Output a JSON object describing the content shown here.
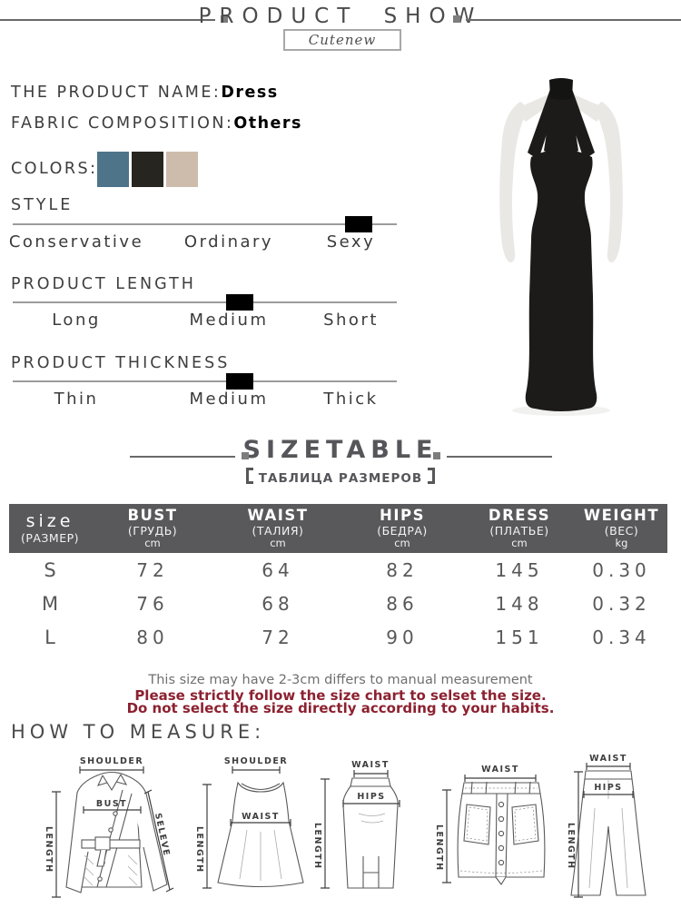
{
  "header": {
    "title": "PRODUCT SHOW",
    "brand": "Cutenew"
  },
  "product": {
    "name_label": "THE PRODUCT NAME:",
    "name_value": "Dress",
    "fabric_label": "FABRIC COMPOSITION:",
    "fabric_value": "Others",
    "colors_label": "COLORS:",
    "swatches": [
      "#4e748a",
      "#26251f",
      "#cdbcab"
    ]
  },
  "attributes": [
    {
      "title": "STYLE",
      "options": [
        "Conservative",
        "Ordinary",
        "Sexy"
      ],
      "selected": "Sexy",
      "marker_percent": 90
    },
    {
      "title": "PRODUCT LENGTH",
      "options": [
        "Long",
        "Medium",
        "Short"
      ],
      "selected": "Medium",
      "marker_percent": 59
    },
    {
      "title": "PRODUCT THICKNESS",
      "options": [
        "Thin",
        "Medium",
        "Thick"
      ],
      "selected": "Medium",
      "marker_percent": 59
    }
  ],
  "size_section": {
    "title": "SIZETABLE",
    "subtitle": "【 ТАБЛИЦА РАЗМЕРОВ 】",
    "subtitle_text": "ТАБЛИЦА РАЗМЕРОВ"
  },
  "size_table": {
    "columns": [
      {
        "en": "size",
        "ru": "(РАЗМЕР)",
        "unit": ""
      },
      {
        "en": "BUST",
        "ru": "(ГРУДЬ)",
        "unit": "cm"
      },
      {
        "en": "WAIST",
        "ru": "(ТАЛИЯ)",
        "unit": "cm"
      },
      {
        "en": "HIPS",
        "ru": "(БЕДРА)",
        "unit": "cm"
      },
      {
        "en": "DRESS",
        "ru": "(ПЛАТЬЕ)",
        "unit": "cm"
      },
      {
        "en": "WEIGHT",
        "ru": "(ВЕС)",
        "unit": "kg"
      }
    ],
    "rows": [
      {
        "size": "S",
        "values": [
          "72",
          "64",
          "82",
          "145",
          "0.30"
        ]
      },
      {
        "size": "M",
        "values": [
          "76",
          "68",
          "86",
          "148",
          "0.32"
        ]
      },
      {
        "size": "L",
        "values": [
          "80",
          "72",
          "90",
          "151",
          "0.34"
        ]
      }
    ]
  },
  "notes": {
    "measure_note": "This size may have 2-3cm differs to manual measurement",
    "warning_line1": "Please strictly follow the size chart to selset the size.",
    "warning_line2": "Do not select the size directly according to your habits."
  },
  "measure": {
    "title": "HOW TO MEASURE:",
    "coat": {
      "shoulder": "SHOULDER",
      "bust": "BUST",
      "length": "LENGTH",
      "sleeve": "SELEVE"
    },
    "dress": {
      "shoulder": "SHOULDER",
      "waist": "WAIST",
      "length": "LENGTH"
    },
    "skirt": {
      "waist": "WAIST",
      "hips": "HIPS",
      "length": "LENGTH"
    },
    "mini_skirt": {
      "waist": "WAIST",
      "length": "LENGTH"
    },
    "pants": {
      "waist": "WAIST",
      "hips": "HIPS",
      "length": "LENGTH"
    }
  },
  "theme": {
    "warning_red": "#8c2130",
    "table_header_bg": "#59585a",
    "text_gray": "#4c4c4c",
    "line_gray": "#9c9c9c",
    "marker_black": "#000000"
  }
}
